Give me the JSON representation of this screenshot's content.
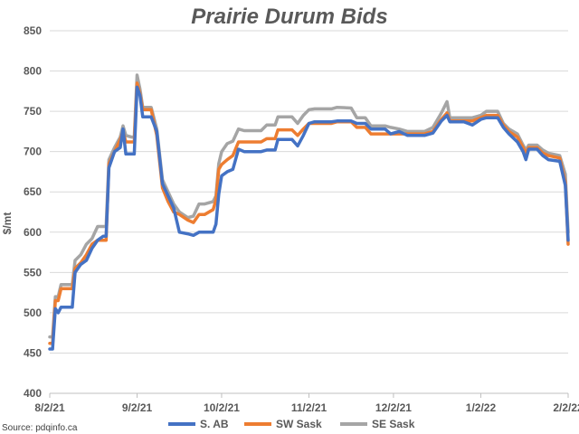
{
  "chart_data": {
    "type": "line",
    "title": "Prairie Durum Bids",
    "ylabel": "$/mt",
    "xlabel": "",
    "source": "Source: pdqinfo.ca",
    "ylim": [
      400,
      850
    ],
    "yticks": [
      400,
      450,
      500,
      550,
      600,
      650,
      700,
      750,
      800,
      850
    ],
    "xlim": [
      "2021-08-02",
      "2022-02-02"
    ],
    "xticks": [
      {
        "date": "2021-08-02",
        "label": "8/2/21"
      },
      {
        "date": "2021-09-02",
        "label": "9/2/21"
      },
      {
        "date": "2021-10-02",
        "label": "10/2/21"
      },
      {
        "date": "2021-11-02",
        "label": "11/2/21"
      },
      {
        "date": "2021-12-02",
        "label": "12/2/21"
      },
      {
        "date": "2022-01-02",
        "label": "1/2/22"
      },
      {
        "date": "2022-02-02",
        "label": "2/2/22"
      }
    ],
    "grid": true,
    "legend_position": "bottom",
    "series": [
      {
        "name": "S. AB",
        "color": "#4472C4",
        "points": [
          [
            "2021-08-02",
            455
          ],
          [
            "2021-08-03",
            455
          ],
          [
            "2021-08-04",
            505
          ],
          [
            "2021-08-05",
            500
          ],
          [
            "2021-08-06",
            507
          ],
          [
            "2021-08-10",
            507
          ],
          [
            "2021-08-11",
            550
          ],
          [
            "2021-08-13",
            560
          ],
          [
            "2021-08-15",
            565
          ],
          [
            "2021-08-17",
            580
          ],
          [
            "2021-08-19",
            590
          ],
          [
            "2021-08-21",
            595
          ],
          [
            "2021-08-22",
            595
          ],
          [
            "2021-08-23",
            680
          ],
          [
            "2021-08-25",
            700
          ],
          [
            "2021-08-27",
            705
          ],
          [
            "2021-08-28",
            728
          ],
          [
            "2021-08-29",
            697
          ],
          [
            "2021-08-31",
            697
          ],
          [
            "2021-09-01",
            697
          ],
          [
            "2021-09-02",
            780
          ],
          [
            "2021-09-03",
            770
          ],
          [
            "2021-09-04",
            743
          ],
          [
            "2021-09-07",
            743
          ],
          [
            "2021-09-09",
            725
          ],
          [
            "2021-09-11",
            660
          ],
          [
            "2021-09-13",
            645
          ],
          [
            "2021-09-15",
            630
          ],
          [
            "2021-09-17",
            600
          ],
          [
            "2021-09-20",
            598
          ],
          [
            "2021-09-22",
            596
          ],
          [
            "2021-09-24",
            600
          ],
          [
            "2021-09-26",
            600
          ],
          [
            "2021-09-29",
            600
          ],
          [
            "2021-09-30",
            610
          ],
          [
            "2021-10-01",
            647
          ],
          [
            "2021-10-02",
            670
          ],
          [
            "2021-10-04",
            675
          ],
          [
            "2021-10-06",
            678
          ],
          [
            "2021-10-08",
            703
          ],
          [
            "2021-10-10",
            700
          ],
          [
            "2021-10-13",
            700
          ],
          [
            "2021-10-16",
            700
          ],
          [
            "2021-10-18",
            702
          ],
          [
            "2021-10-21",
            702
          ],
          [
            "2021-10-22",
            715
          ],
          [
            "2021-10-27",
            715
          ],
          [
            "2021-10-29",
            707
          ],
          [
            "2021-10-31",
            720
          ],
          [
            "2021-11-02",
            735
          ],
          [
            "2021-11-04",
            737
          ],
          [
            "2021-11-10",
            737
          ],
          [
            "2021-11-12",
            738
          ],
          [
            "2021-11-17",
            738
          ],
          [
            "2021-11-19",
            735
          ],
          [
            "2021-11-22",
            735
          ],
          [
            "2021-11-24",
            728
          ],
          [
            "2021-11-29",
            728
          ],
          [
            "2021-12-01",
            722
          ],
          [
            "2021-12-04",
            725
          ],
          [
            "2021-12-07",
            720
          ],
          [
            "2021-12-13",
            720
          ],
          [
            "2021-12-16",
            723
          ],
          [
            "2021-12-19",
            738
          ],
          [
            "2021-12-21",
            745
          ],
          [
            "2021-12-22",
            737
          ],
          [
            "2021-12-27",
            737
          ],
          [
            "2021-12-30",
            733
          ],
          [
            "2022-01-02",
            740
          ],
          [
            "2022-01-04",
            742
          ],
          [
            "2022-01-08",
            742
          ],
          [
            "2022-01-10",
            730
          ],
          [
            "2022-01-12",
            722
          ],
          [
            "2022-01-15",
            712
          ],
          [
            "2022-01-17",
            700
          ],
          [
            "2022-01-18",
            690
          ],
          [
            "2022-01-19",
            703
          ],
          [
            "2022-01-22",
            703
          ],
          [
            "2022-01-24",
            695
          ],
          [
            "2022-01-26",
            690
          ],
          [
            "2022-01-30",
            688
          ],
          [
            "2022-02-01",
            658
          ],
          [
            "2022-02-02",
            590
          ]
        ]
      },
      {
        "name": "SW Sask",
        "color": "#ED7D31",
        "points": [
          [
            "2021-08-02",
            462
          ],
          [
            "2021-08-03",
            462
          ],
          [
            "2021-08-04",
            515
          ],
          [
            "2021-08-05",
            515
          ],
          [
            "2021-08-06",
            530
          ],
          [
            "2021-08-10",
            530
          ],
          [
            "2021-08-11",
            555
          ],
          [
            "2021-08-13",
            562
          ],
          [
            "2021-08-15",
            572
          ],
          [
            "2021-08-17",
            585
          ],
          [
            "2021-08-19",
            590
          ],
          [
            "2021-08-21",
            590
          ],
          [
            "2021-08-22",
            590
          ],
          [
            "2021-08-23",
            685
          ],
          [
            "2021-08-25",
            700
          ],
          [
            "2021-08-27",
            715
          ],
          [
            "2021-08-28",
            725
          ],
          [
            "2021-08-29",
            712
          ],
          [
            "2021-08-31",
            712
          ],
          [
            "2021-09-01",
            712
          ],
          [
            "2021-09-02",
            785
          ],
          [
            "2021-09-03",
            772
          ],
          [
            "2021-09-04",
            752
          ],
          [
            "2021-09-07",
            752
          ],
          [
            "2021-09-09",
            720
          ],
          [
            "2021-09-11",
            655
          ],
          [
            "2021-09-13",
            638
          ],
          [
            "2021-09-15",
            625
          ],
          [
            "2021-09-17",
            622
          ],
          [
            "2021-09-20",
            615
          ],
          [
            "2021-09-22",
            612
          ],
          [
            "2021-09-24",
            622
          ],
          [
            "2021-09-26",
            622
          ],
          [
            "2021-09-29",
            628
          ],
          [
            "2021-09-30",
            640
          ],
          [
            "2021-10-01",
            678
          ],
          [
            "2021-10-02",
            684
          ],
          [
            "2021-10-04",
            690
          ],
          [
            "2021-10-06",
            695
          ],
          [
            "2021-10-08",
            712
          ],
          [
            "2021-10-10",
            712
          ],
          [
            "2021-10-13",
            712
          ],
          [
            "2021-10-16",
            712
          ],
          [
            "2021-10-18",
            716
          ],
          [
            "2021-10-21",
            716
          ],
          [
            "2021-10-22",
            727
          ],
          [
            "2021-10-27",
            727
          ],
          [
            "2021-10-29",
            720
          ],
          [
            "2021-10-31",
            728
          ],
          [
            "2021-11-02",
            735
          ],
          [
            "2021-11-04",
            735
          ],
          [
            "2021-11-10",
            735
          ],
          [
            "2021-11-12",
            737
          ],
          [
            "2021-11-17",
            737
          ],
          [
            "2021-11-19",
            730
          ],
          [
            "2021-11-22",
            730
          ],
          [
            "2021-11-24",
            722
          ],
          [
            "2021-11-29",
            722
          ],
          [
            "2021-12-01",
            722
          ],
          [
            "2021-12-04",
            722
          ],
          [
            "2021-12-07",
            722
          ],
          [
            "2021-12-13",
            722
          ],
          [
            "2021-12-16",
            725
          ],
          [
            "2021-12-19",
            740
          ],
          [
            "2021-12-21",
            748
          ],
          [
            "2021-12-22",
            738
          ],
          [
            "2021-12-27",
            738
          ],
          [
            "2021-12-30",
            738
          ],
          [
            "2022-01-02",
            742
          ],
          [
            "2022-01-04",
            745
          ],
          [
            "2022-01-08",
            745
          ],
          [
            "2022-01-10",
            733
          ],
          [
            "2022-01-12",
            725
          ],
          [
            "2022-01-15",
            718
          ],
          [
            "2022-01-17",
            705
          ],
          [
            "2022-01-18",
            698
          ],
          [
            "2022-01-19",
            705
          ],
          [
            "2022-01-22",
            705
          ],
          [
            "2022-01-24",
            698
          ],
          [
            "2022-01-26",
            695
          ],
          [
            "2022-01-30",
            692
          ],
          [
            "2022-02-01",
            662
          ],
          [
            "2022-02-02",
            585
          ]
        ]
      },
      {
        "name": "SE Sask",
        "color": "#A5A5A5",
        "points": [
          [
            "2021-08-02",
            470
          ],
          [
            "2021-08-03",
            470
          ],
          [
            "2021-08-04",
            520
          ],
          [
            "2021-08-05",
            520
          ],
          [
            "2021-08-06",
            535
          ],
          [
            "2021-08-10",
            535
          ],
          [
            "2021-08-11",
            565
          ],
          [
            "2021-08-13",
            572
          ],
          [
            "2021-08-15",
            585
          ],
          [
            "2021-08-17",
            592
          ],
          [
            "2021-08-19",
            607
          ],
          [
            "2021-08-21",
            607
          ],
          [
            "2021-08-22",
            607
          ],
          [
            "2021-08-23",
            690
          ],
          [
            "2021-08-25",
            705
          ],
          [
            "2021-08-27",
            718
          ],
          [
            "2021-08-28",
            732
          ],
          [
            "2021-08-29",
            720
          ],
          [
            "2021-08-31",
            718
          ],
          [
            "2021-09-01",
            718
          ],
          [
            "2021-09-02",
            795
          ],
          [
            "2021-09-03",
            778
          ],
          [
            "2021-09-04",
            755
          ],
          [
            "2021-09-07",
            755
          ],
          [
            "2021-09-09",
            728
          ],
          [
            "2021-09-11",
            665
          ],
          [
            "2021-09-13",
            650
          ],
          [
            "2021-09-15",
            635
          ],
          [
            "2021-09-17",
            625
          ],
          [
            "2021-09-20",
            618
          ],
          [
            "2021-09-22",
            620
          ],
          [
            "2021-09-24",
            635
          ],
          [
            "2021-09-26",
            635
          ],
          [
            "2021-09-29",
            638
          ],
          [
            "2021-09-30",
            645
          ],
          [
            "2021-10-01",
            685
          ],
          [
            "2021-10-02",
            700
          ],
          [
            "2021-10-04",
            710
          ],
          [
            "2021-10-06",
            713
          ],
          [
            "2021-10-08",
            728
          ],
          [
            "2021-10-10",
            726
          ],
          [
            "2021-10-13",
            726
          ],
          [
            "2021-10-16",
            726
          ],
          [
            "2021-10-18",
            733
          ],
          [
            "2021-10-21",
            733
          ],
          [
            "2021-10-22",
            743
          ],
          [
            "2021-10-27",
            743
          ],
          [
            "2021-10-29",
            735
          ],
          [
            "2021-10-31",
            745
          ],
          [
            "2021-11-02",
            752
          ],
          [
            "2021-11-04",
            753
          ],
          [
            "2021-11-10",
            753
          ],
          [
            "2021-11-12",
            755
          ],
          [
            "2021-11-17",
            754
          ],
          [
            "2021-11-19",
            742
          ],
          [
            "2021-11-22",
            742
          ],
          [
            "2021-11-24",
            732
          ],
          [
            "2021-11-29",
            732
          ],
          [
            "2021-12-01",
            730
          ],
          [
            "2021-12-04",
            728
          ],
          [
            "2021-12-07",
            725
          ],
          [
            "2021-12-13",
            725
          ],
          [
            "2021-12-16",
            730
          ],
          [
            "2021-12-19",
            748
          ],
          [
            "2021-12-21",
            762
          ],
          [
            "2021-12-22",
            742
          ],
          [
            "2021-12-27",
            742
          ],
          [
            "2021-12-30",
            742
          ],
          [
            "2022-01-02",
            745
          ],
          [
            "2022-01-04",
            750
          ],
          [
            "2022-01-08",
            750
          ],
          [
            "2022-01-10",
            735
          ],
          [
            "2022-01-12",
            728
          ],
          [
            "2022-01-15",
            722
          ],
          [
            "2022-01-17",
            708
          ],
          [
            "2022-01-18",
            702
          ],
          [
            "2022-01-19",
            708
          ],
          [
            "2022-01-22",
            708
          ],
          [
            "2022-01-24",
            702
          ],
          [
            "2022-01-26",
            698
          ],
          [
            "2022-01-30",
            695
          ],
          [
            "2022-02-01",
            672
          ],
          [
            "2022-02-02",
            600
          ]
        ]
      }
    ]
  }
}
